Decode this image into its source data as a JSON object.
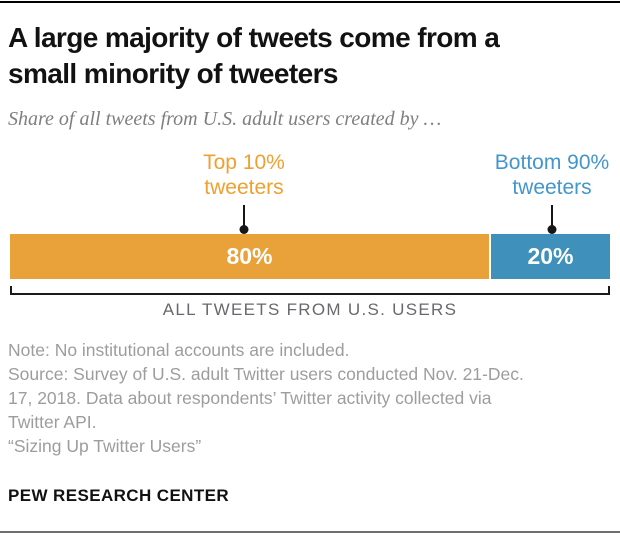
{
  "header": {
    "title_lines": [
      "A large majority of tweets come from a",
      "small minority of tweeters"
    ],
    "subtitle": "Share of all tweets from U.S. adult users created by …"
  },
  "chart": {
    "labels": [
      {
        "lines": [
          "Top 10%",
          "tweeters"
        ]
      },
      {
        "lines": [
          "Bottom 90%",
          "tweeters"
        ]
      }
    ],
    "bracket_label": "ALL TWEETS FROM U.S. USERS"
  },
  "chart_data": {
    "type": "bar",
    "orientation": "horizontal-stacked",
    "title": "A large majority of tweets come from a small minority of tweeters",
    "subtitle": "Share of all tweets from U.S. adult users created by …",
    "categories": [
      "Top 10% tweeters",
      "Bottom 90% tweeters"
    ],
    "values": [
      80,
      20
    ],
    "value_labels": [
      "80%",
      "20%"
    ],
    "unit": "percent",
    "axis_label": "ALL TWEETS FROM U.S. USERS",
    "legend_position": "above-bar-callouts",
    "colors": {
      "top10_bar": "#E9A23A",
      "top10_label": "#EFA02F",
      "bottom90_bar": "#4090BC",
      "bottom90_label": "#4396CC",
      "value_text": "#FFFFFF",
      "notes_text": "#9D9D9D",
      "rule_top": "#000000"
    }
  },
  "notes": {
    "lines": [
      "Note: No institutional accounts are included.",
      "Source: Survey of U.S. adult Twitter users conducted Nov. 21-Dec.",
      "17, 2018. Data about respondents’ Twitter activity collected via",
      "Twitter API.",
      "“Sizing Up Twitter Users”"
    ]
  },
  "footer": {
    "brand": "PEW RESEARCH CENTER"
  }
}
